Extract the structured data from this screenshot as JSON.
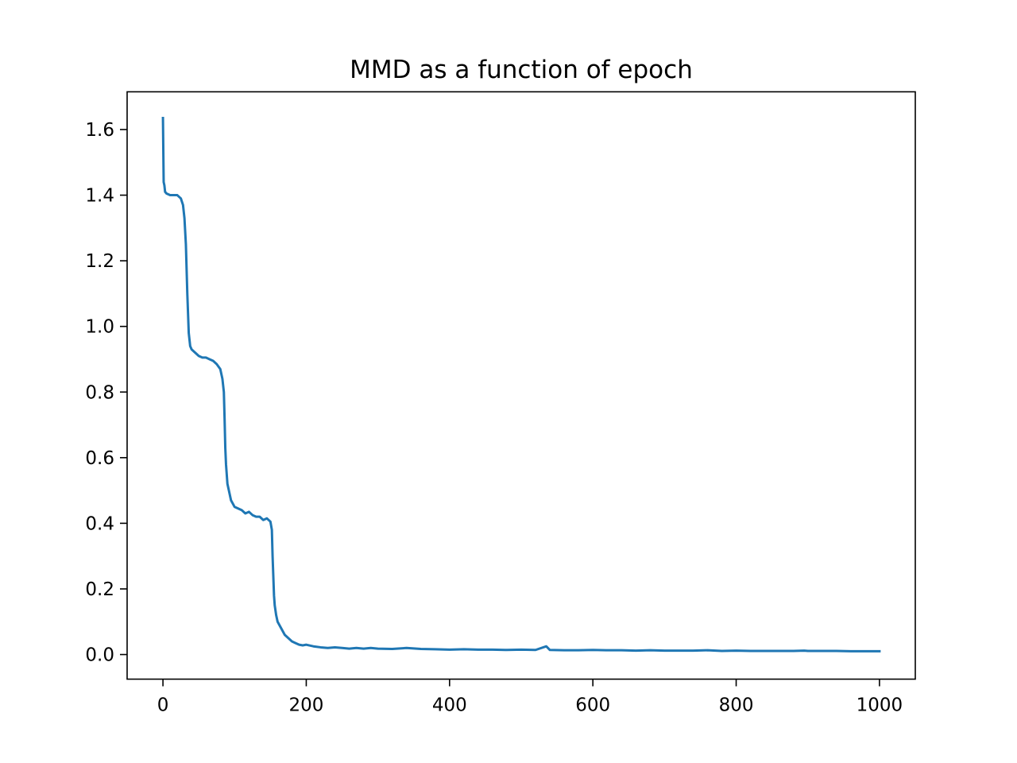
{
  "chart_data": {
    "type": "line",
    "title": "MMD as a function of epoch",
    "xlabel": "",
    "ylabel": "",
    "xlim": [
      -50,
      1050
    ],
    "ylim": [
      -0.075,
      1.715
    ],
    "x_ticks": [
      0,
      200,
      400,
      600,
      800,
      1000
    ],
    "x_tick_labels": [
      "0",
      "200",
      "400",
      "600",
      "800",
      "1000"
    ],
    "y_ticks": [
      0.0,
      0.2,
      0.4,
      0.6,
      0.8,
      1.0,
      1.2,
      1.4,
      1.6
    ],
    "y_tick_labels": [
      "0.0",
      "0.2",
      "0.4",
      "0.6",
      "0.8",
      "1.0",
      "1.2",
      "1.4",
      "1.6"
    ],
    "grid": false,
    "legend": "none",
    "series": [
      {
        "color": "#1f77b4",
        "x": [
          0,
          1,
          2,
          3,
          5,
          10,
          20,
          25,
          28,
          30,
          32,
          34,
          36,
          37,
          38,
          40,
          45,
          50,
          55,
          60,
          65,
          70,
          75,
          80,
          83,
          85,
          86,
          87,
          88,
          90,
          92,
          95,
          100,
          110,
          115,
          120,
          125,
          130,
          135,
          140,
          145,
          150,
          152,
          153,
          155,
          156,
          158,
          160,
          165,
          170,
          175,
          180,
          185,
          190,
          195,
          200,
          210,
          220,
          230,
          240,
          250,
          260,
          270,
          280,
          290,
          300,
          320,
          340,
          360,
          380,
          400,
          420,
          440,
          460,
          480,
          500,
          520,
          535,
          540,
          560,
          580,
          600,
          620,
          640,
          660,
          680,
          700,
          720,
          740,
          760,
          780,
          800,
          820,
          840,
          860,
          880,
          895,
          900,
          920,
          940,
          960,
          980,
          1000
        ],
        "values": [
          1.635,
          1.44,
          1.43,
          1.41,
          1.405,
          1.4,
          1.4,
          1.39,
          1.37,
          1.33,
          1.25,
          1.1,
          0.98,
          0.96,
          0.94,
          0.93,
          0.92,
          0.91,
          0.905,
          0.905,
          0.9,
          0.895,
          0.885,
          0.87,
          0.84,
          0.8,
          0.72,
          0.63,
          0.58,
          0.52,
          0.5,
          0.47,
          0.45,
          0.44,
          0.43,
          0.435,
          0.425,
          0.42,
          0.42,
          0.41,
          0.415,
          0.405,
          0.38,
          0.3,
          0.18,
          0.15,
          0.12,
          0.1,
          0.08,
          0.06,
          0.05,
          0.04,
          0.035,
          0.03,
          0.028,
          0.03,
          0.025,
          0.022,
          0.02,
          0.022,
          0.02,
          0.018,
          0.02,
          0.018,
          0.02,
          0.018,
          0.017,
          0.02,
          0.017,
          0.016,
          0.015,
          0.016,
          0.015,
          0.015,
          0.014,
          0.015,
          0.014,
          0.025,
          0.014,
          0.013,
          0.013,
          0.014,
          0.013,
          0.013,
          0.012,
          0.013,
          0.012,
          0.012,
          0.012,
          0.013,
          0.011,
          0.012,
          0.011,
          0.011,
          0.011,
          0.011,
          0.012,
          0.011,
          0.011,
          0.011,
          0.01,
          0.01,
          0.01
        ]
      }
    ]
  }
}
